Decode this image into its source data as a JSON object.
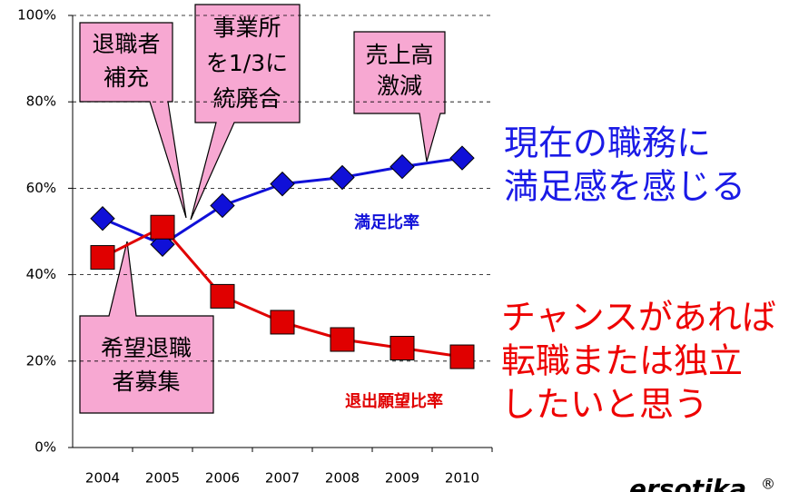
{
  "chart_data": {
    "type": "line",
    "categories": [
      "2004",
      "2005",
      "2006",
      "2007",
      "2008",
      "2009",
      "2010"
    ],
    "series": [
      {
        "name": "満足比率",
        "color": "#1010d8",
        "marker": "diamond",
        "values": [
          53,
          47,
          56,
          61,
          62.5,
          65,
          67
        ]
      },
      {
        "name": "退出願望比率",
        "color": "#e00000",
        "marker": "square",
        "values": [
          44,
          51,
          35,
          29,
          25,
          23,
          21
        ]
      }
    ],
    "ylim": [
      0,
      100
    ],
    "yticks": [
      {
        "value": 0,
        "label": "0%"
      },
      {
        "value": 20,
        "label": "20%"
      },
      {
        "value": 40,
        "label": "40%"
      },
      {
        "value": 60,
        "label": "60%"
      },
      {
        "value": 80,
        "label": "80%"
      },
      {
        "value": 100,
        "label": "100%"
      }
    ],
    "grid": true,
    "annotations": [
      {
        "lines": [
          "退職者",
          "補充"
        ]
      },
      {
        "lines": [
          "事業所",
          "を1/3に",
          "統廃合"
        ]
      },
      {
        "lines": [
          "売上高",
          "激減"
        ]
      },
      {
        "lines": [
          "希望退職",
          "者募集"
        ]
      }
    ],
    "notes": [
      {
        "lines": [
          "現在の職務に",
          "満足感を感じる"
        ],
        "color": "#1a1ae6"
      },
      {
        "lines": [
          "チャンスがあれば",
          "転職または独立",
          "したいと思う"
        ],
        "color": "#ee0000"
      }
    ]
  },
  "logo": {
    "text": "ersotika",
    "mark": "®"
  }
}
